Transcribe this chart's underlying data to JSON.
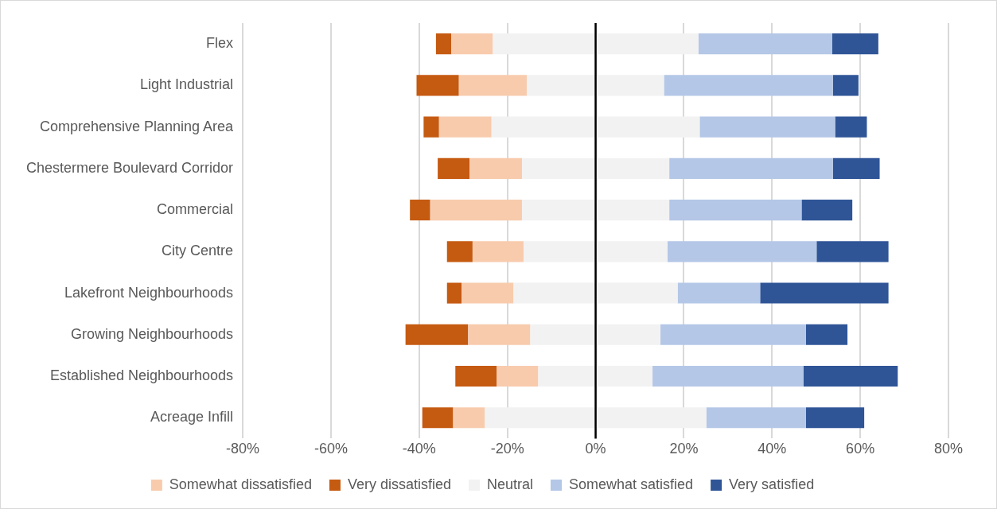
{
  "chart_data": {
    "type": "bar",
    "orientation": "horizontal",
    "stacked": true,
    "categories": [
      "Flex",
      "Light Industrial",
      "Comprehensive Planning Area",
      "Chestermere Boulevard Corridor",
      "Commercial",
      "City Centre",
      "Lakefront Neighbourhoods",
      "Growing Neighbourhoods",
      "Established Neighbourhoods",
      "Acreage Infill"
    ],
    "series": [
      {
        "color": "#f2f2f2",
        "values": [
          -23.3,
          -15.6,
          -23.6,
          -16.7,
          -16.7,
          -16.3,
          -18.6,
          -14.8,
          -13.0,
          -25.1
        ]
      },
      {
        "name": "Somewhat dissatisfied",
        "color": "#f8cbad",
        "values": [
          -9.4,
          -15.4,
          -11.9,
          -11.9,
          -20.8,
          -11.6,
          -11.8,
          -14.1,
          -9.4,
          -7.2
        ]
      },
      {
        "name": "Very dissatisfied",
        "color": "#c55a11",
        "values": [
          -3.5,
          -9.6,
          -3.5,
          -7.2,
          -4.6,
          -5.8,
          -3.3,
          -14.2,
          -9.4,
          -7.0
        ]
      },
      {
        "name": "Neutral",
        "color": "#f2f2f2",
        "values": [
          23.3,
          15.5,
          23.6,
          16.7,
          16.7,
          16.3,
          18.6,
          14.7,
          12.9,
          25.1
        ]
      },
      {
        "name": "Somewhat satisfied",
        "color": "#b4c7e7",
        "values": [
          30.3,
          38.3,
          30.7,
          37.1,
          30.0,
          33.8,
          18.7,
          33.0,
          34.2,
          22.6
        ]
      },
      {
        "name": "Very satisfied",
        "color": "#2f5597",
        "values": [
          10.5,
          5.8,
          7.2,
          10.6,
          11.5,
          16.3,
          29.1,
          9.4,
          21.4,
          13.2
        ]
      }
    ],
    "xlim": [
      -80,
      80
    ],
    "xticks": [
      {
        "value": -80,
        "label": "-80%"
      },
      {
        "value": -60,
        "label": "-60%"
      },
      {
        "value": -40,
        "label": "-40%"
      },
      {
        "value": -20,
        "label": "-20%"
      },
      {
        "value": 0,
        "label": "0%"
      },
      {
        "value": 20,
        "label": "20%"
      },
      {
        "value": 40,
        "label": "40%"
      },
      {
        "value": 60,
        "label": "60%"
      },
      {
        "value": 80,
        "label": "80%"
      }
    ],
    "ref_lines": [
      {
        "axis": "x",
        "value": 0,
        "color": "#000000"
      }
    ],
    "grid": "x",
    "legend": "bottom"
  }
}
